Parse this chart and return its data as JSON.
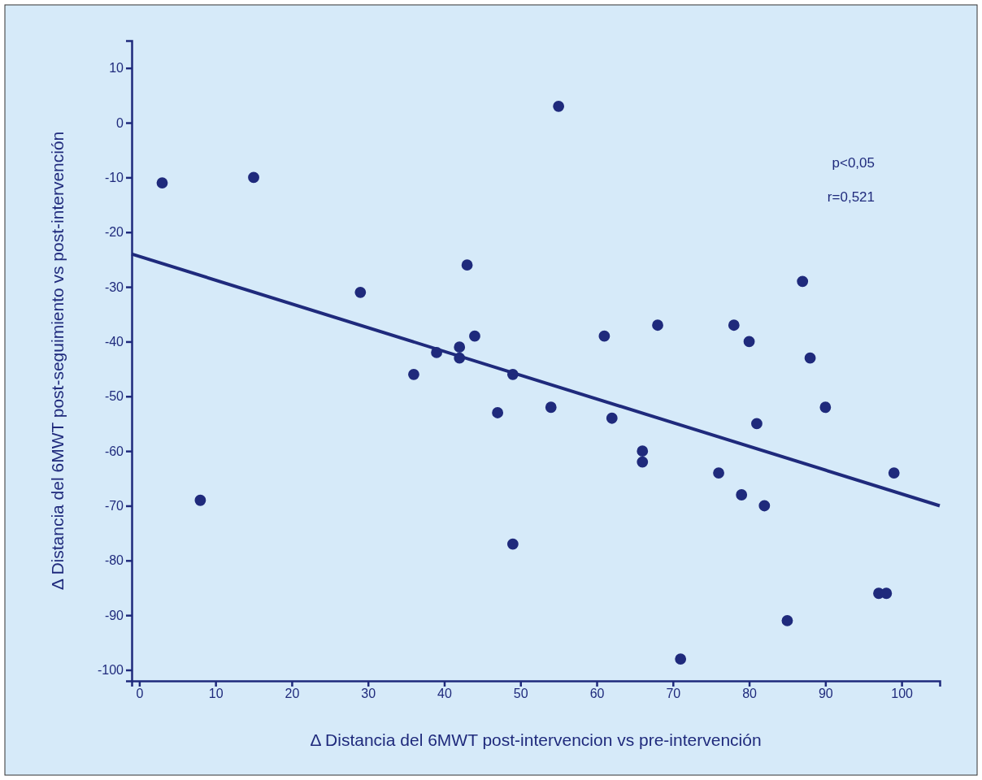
{
  "chart_data": {
    "type": "scatter",
    "xlabel": "Δ Distancia del 6MWT post-intervencion vs pre-intervención",
    "ylabel": "Δ Distancia del 6MWT post-seguimiento vs post-intervención",
    "annotations": [
      "p<0,05",
      "r=0,521"
    ],
    "xlim": [
      -1,
      105
    ],
    "xticks": [
      0,
      10,
      20,
      30,
      40,
      50,
      60,
      70,
      80,
      90,
      100
    ],
    "ylim": [
      -102,
      15
    ],
    "yticks": [
      -100,
      -90,
      -80,
      -70,
      -60,
      -50,
      -40,
      -30,
      -20,
      -10,
      0,
      10
    ],
    "grid": false,
    "marker": "circle",
    "series": [
      {
        "color": "#1f2a7c",
        "x": [
          3,
          15,
          8,
          29,
          43,
          44,
          39,
          42,
          42,
          36,
          49,
          47,
          54,
          49,
          55,
          61,
          68,
          62,
          66,
          66,
          71,
          76,
          78,
          80,
          79,
          81,
          82,
          85,
          87,
          88,
          90,
          97,
          98,
          99
        ],
        "values": [
          -11,
          -10,
          -69,
          -31,
          -26,
          -39,
          -42,
          -41,
          -43,
          -46,
          -46,
          -53,
          -52,
          -77,
          3,
          -39,
          -37,
          -54,
          -60,
          -62,
          -98,
          -64,
          -37,
          -40,
          -68,
          -55,
          -70,
          -91,
          -29,
          -43,
          -52,
          -86,
          -86,
          -64
        ]
      },
      {
        "type": "line",
        "color": "#1f2a7c",
        "x": [
          -1,
          105
        ],
        "values": [
          -24,
          -70
        ],
        "marker": "none",
        "line_style": "solid"
      }
    ]
  }
}
